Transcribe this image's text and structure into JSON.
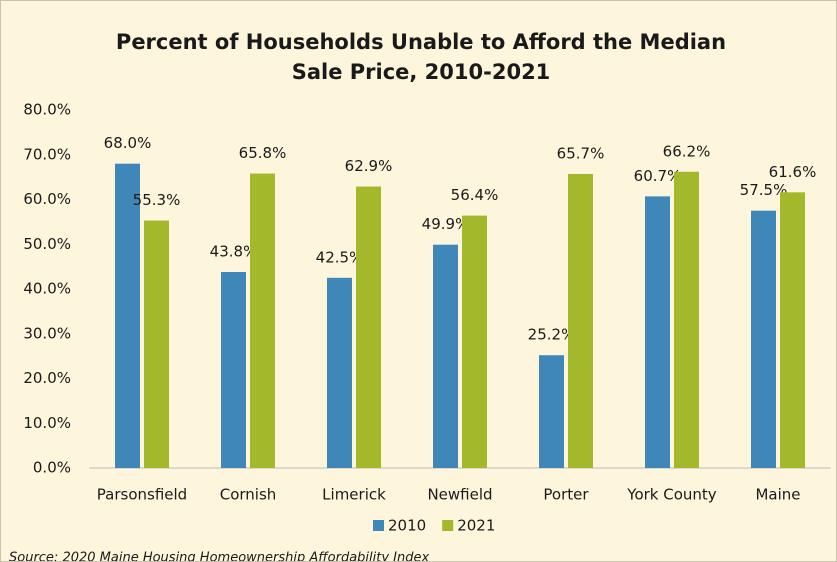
{
  "chart_data": {
    "type": "bar",
    "title": "Percent of Households Unable to Afford the Median Sale Price, 2010-2021",
    "categories": [
      "Parsonsfield",
      "Cornish",
      "Limerick",
      "Newfield",
      "Porter",
      "York County",
      "Maine"
    ],
    "series": [
      {
        "name": "2010",
        "color": "#3f87b8",
        "values": [
          68.0,
          43.8,
          42.5,
          49.9,
          25.2,
          60.7,
          57.5
        ],
        "value_labels": [
          "68.0%",
          "43.8%",
          "42.5%",
          "49.9%",
          "25.2%",
          "60.7%",
          "57.5%"
        ]
      },
      {
        "name": "2021",
        "color": "#a3b82a",
        "values": [
          55.3,
          65.8,
          62.9,
          56.4,
          65.7,
          66.2,
          61.6
        ],
        "value_labels": [
          "55.3%",
          "65.8%",
          "62.9%",
          "56.4%",
          "65.7%",
          "66.2%",
          "61.6%"
        ]
      }
    ],
    "ylim": [
      0,
      80
    ],
    "yticks": [
      {
        "value": 0,
        "label": "0.0%"
      },
      {
        "value": 10,
        "label": "10.0%"
      },
      {
        "value": 20,
        "label": "20.0%"
      },
      {
        "value": 30,
        "label": "30.0%"
      },
      {
        "value": 40,
        "label": "40.0%"
      },
      {
        "value": 50,
        "label": "50.0%"
      },
      {
        "value": 60,
        "label": "60.0%"
      },
      {
        "value": 70,
        "label": "70.0%"
      },
      {
        "value": 80,
        "label": "80.0%"
      }
    ],
    "grid": false,
    "legend": "bottom",
    "source": "Source: 2020 Maine Housing Homeownership Affordability Index"
  }
}
